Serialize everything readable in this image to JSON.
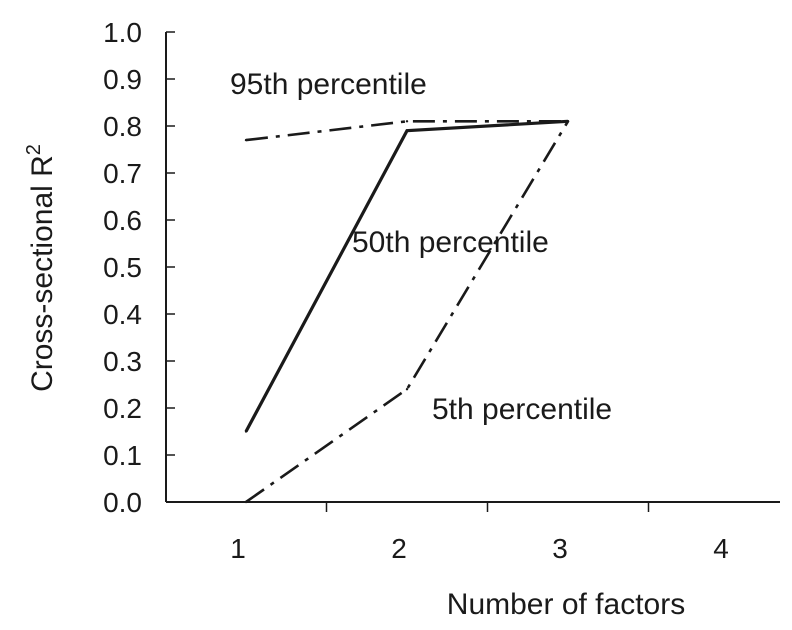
{
  "chart_data": {
    "type": "line",
    "xlabel": "Number of factors",
    "ylabel": "Cross-sectional R",
    "ylabel_superscript": "2",
    "x_categories": [
      1,
      2,
      3,
      4
    ],
    "xlim": [
      0.5,
      4.5
    ],
    "ylim": [
      0.0,
      1.0
    ],
    "y_ticks": [
      "0.0",
      "0.1",
      "0.2",
      "0.3",
      "0.4",
      "0.5",
      "0.6",
      "0.7",
      "0.8",
      "0.9",
      "1.0"
    ],
    "grid": false,
    "legend": "none (series labelled inline)",
    "series": [
      {
        "key": "p95",
        "name": "95th percentile",
        "x": [
          1,
          2,
          3
        ],
        "values": [
          0.77,
          0.81,
          0.81
        ],
        "line_style": "dash-dot"
      },
      {
        "key": "p50",
        "name": "50th percentile",
        "x": [
          1,
          2,
          3
        ],
        "values": [
          0.15,
          0.79,
          0.81
        ],
        "line_style": "solid"
      },
      {
        "key": "p5",
        "name": "5th percentile",
        "x": [
          1,
          2,
          3
        ],
        "values": [
          0.0,
          0.24,
          0.81
        ],
        "line_style": "dash-dot"
      }
    ]
  },
  "colors": {
    "line": "#1a1a1a",
    "axis": "#1a1a1a",
    "background": "#ffffff"
  }
}
